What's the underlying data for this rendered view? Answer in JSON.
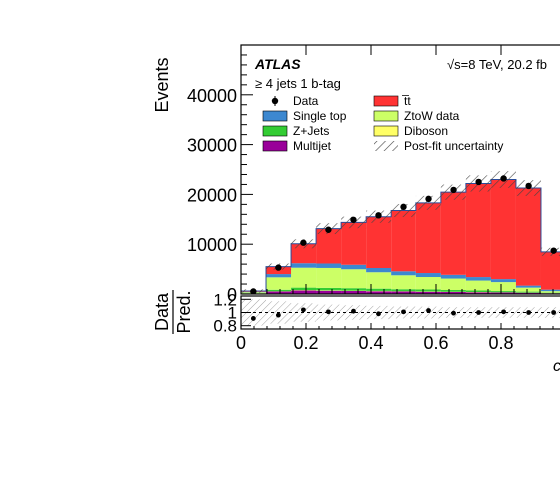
{
  "chart_data": [
    {
      "type": "stacked-histogram",
      "experiment_label": "ATLAS",
      "energy_label": "√s=8 TeV, 20.2 fb",
      "selection_label": "≥ 4 jets 1 b-tag",
      "ylabel": "Events",
      "xlabel": "c",
      "ylim": [
        0,
        50000
      ],
      "yticks": [
        "0",
        "10000",
        "20000",
        "30000",
        "40000"
      ],
      "ytick_values": [
        0,
        10000,
        20000,
        30000,
        40000
      ],
      "xlim": [
        0,
        1
      ],
      "xticks": [
        "0",
        "0.2",
        "0.4",
        "0.6",
        "0.8"
      ],
      "xtick_values": [
        0,
        0.2,
        0.4,
        0.6,
        0.8
      ],
      "bin_edges": [
        0,
        0.077,
        0.154,
        0.231,
        0.308,
        0.385,
        0.462,
        0.538,
        0.615,
        0.692,
        0.769,
        0.846,
        0.923,
        1.0
      ],
      "legend": [
        {
          "label": "Data",
          "color": "#000000",
          "kind": "marker"
        },
        {
          "label": "t̅t",
          "color": "#ff3333",
          "kind": "box"
        },
        {
          "label": "Single top",
          "color": "#3d88d0",
          "kind": "box"
        },
        {
          "label": "ZtoW data",
          "color": "#ccff66",
          "kind": "box"
        },
        {
          "label": "Z+Jets",
          "color": "#33cc33",
          "kind": "box"
        },
        {
          "label": "Diboson",
          "color": "#ffff66",
          "kind": "box"
        },
        {
          "label": "Multijet",
          "color": "#990099",
          "kind": "box"
        },
        {
          "label": "Post-fit uncertainty",
          "color": "#888888",
          "kind": "hatch"
        }
      ],
      "series": [
        {
          "label": "Multijet",
          "color": "#990099",
          "values": [
            100,
            500,
            700,
            650,
            600,
            550,
            500,
            450,
            400,
            350,
            300,
            250,
            150
          ]
        },
        {
          "label": "Diboson",
          "color": "#ffff66",
          "values": [
            10,
            50,
            80,
            80,
            70,
            70,
            60,
            60,
            50,
            50,
            40,
            30,
            20
          ]
        },
        {
          "label": "Z+Jets",
          "color": "#33cc33",
          "values": [
            50,
            300,
            500,
            500,
            500,
            450,
            400,
            400,
            350,
            300,
            250,
            200,
            100
          ]
        },
        {
          "label": "ZtoW data",
          "color": "#ccff66",
          "values": [
            200,
            2500,
            4000,
            4000,
            3800,
            3300,
            2800,
            2500,
            2300,
            2000,
            1800,
            800,
            300
          ]
        },
        {
          "label": "Single top",
          "color": "#3d88d0",
          "values": [
            80,
            650,
            900,
            900,
            900,
            850,
            800,
            800,
            750,
            700,
            600,
            400,
            300
          ]
        },
        {
          "label": "t̅t",
          "color": "#ff3333",
          "values": [
            160,
            1500,
            3900,
            7000,
            8500,
            10300,
            12200,
            14100,
            16600,
            18800,
            20000,
            19600,
            7600
          ]
        }
      ],
      "data_points": {
        "x": [
          0.038,
          0.115,
          0.192,
          0.269,
          0.346,
          0.423,
          0.5,
          0.577,
          0.654,
          0.731,
          0.808,
          0.885,
          0.962
        ],
        "y": [
          500,
          5300,
          10300,
          12900,
          14900,
          15800,
          17500,
          19100,
          20900,
          22500,
          23200,
          21700,
          8700
        ]
      },
      "uncertainty_fraction": 0.06
    },
    {
      "type": "ratio",
      "ylabel_top": "Data",
      "ylabel_bottom": "Pred.",
      "ylim": [
        0.75,
        1.25
      ],
      "yticks": [
        "0.8",
        "1",
        "1.2"
      ],
      "ytick_values": [
        0.8,
        1.0,
        1.2
      ],
      "xlim": [
        0,
        1
      ],
      "xticks": [
        "0",
        "0.2",
        "0.4",
        "0.6",
        "0.8"
      ],
      "xtick_values": [
        0,
        0.2,
        0.4,
        0.6,
        0.8
      ],
      "x": [
        0.038,
        0.115,
        0.192,
        0.269,
        0.346,
        0.423,
        0.5,
        0.577,
        0.654,
        0.731,
        0.808,
        0.885,
        0.962
      ],
      "y": [
        0.91,
        0.96,
        1.04,
        1.01,
        1.02,
        0.98,
        1.01,
        1.03,
        0.99,
        1.0,
        1.01,
        1.0,
        1.0
      ],
      "band_halfwidth": [
        0.2,
        0.17,
        0.14,
        0.12,
        0.11,
        0.1,
        0.09,
        0.09,
        0.08,
        0.08,
        0.08,
        0.08,
        0.08
      ]
    }
  ]
}
